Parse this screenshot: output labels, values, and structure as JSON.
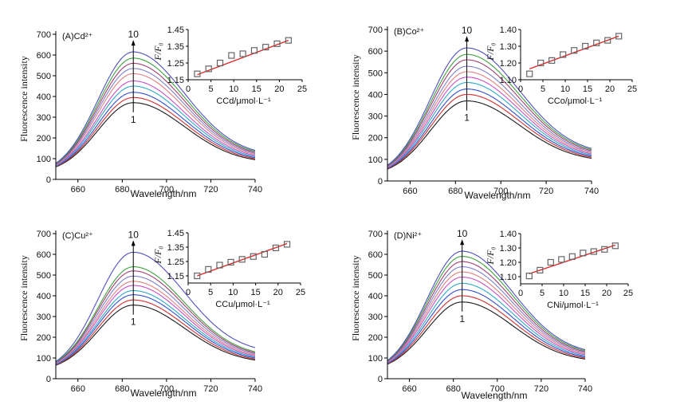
{
  "chart_data": [
    {
      "id": "A",
      "type": "line",
      "panel_label": "(A)Cd²⁺",
      "xlabel": "Wavelength/nm",
      "ylabel": "Fluorescence intensity",
      "xlim": [
        650,
        740
      ],
      "ylim": [
        0,
        700
      ],
      "xticks": [
        660,
        680,
        700,
        720,
        740
      ],
      "yticks": [
        0,
        100,
        200,
        300,
        400,
        500,
        600,
        700
      ],
      "peak_x": 685,
      "curve_labels": [
        "1",
        "10"
      ],
      "series_peaks": [
        370,
        395,
        420,
        450,
        475,
        510,
        535,
        560,
        585,
        615
      ],
      "series_start": [
        60,
        62,
        64,
        66,
        68,
        70,
        72,
        74,
        76,
        78
      ],
      "series_end": [
        95,
        100,
        105,
        110,
        115,
        120,
        125,
        130,
        135,
        140
      ],
      "inset": {
        "ylabel": "F/F₀",
        "xlabel": "CCd/μmol·L⁻¹",
        "xlim": [
          0,
          25
        ],
        "ylim": [
          1.15,
          1.45
        ],
        "xticks": [
          0,
          5,
          10,
          15,
          20,
          25
        ],
        "yticks": [
          1.15,
          1.25,
          1.35,
          1.45
        ],
        "x": [
          2,
          4.5,
          7,
          9.5,
          12,
          14.5,
          17,
          19.5,
          22
        ],
        "y": [
          1.185,
          1.215,
          1.25,
          1.295,
          1.305,
          1.325,
          1.345,
          1.365,
          1.385
        ],
        "fit": [
          [
            2,
            1.18
          ],
          [
            22,
            1.385
          ]
        ]
      }
    },
    {
      "id": "B",
      "type": "line",
      "panel_label": "(B)Co²⁺",
      "xlabel": "Wavelength/nm",
      "ylabel": "Fluorescence intensity",
      "xlim": [
        650,
        740
      ],
      "ylim": [
        0,
        700
      ],
      "xticks": [
        660,
        680,
        700,
        720,
        740
      ],
      "yticks": [
        0,
        100,
        200,
        300,
        400,
        500,
        600,
        700
      ],
      "peak_x": 685,
      "curve_labels": [
        "1",
        "10"
      ],
      "series_peaks": [
        370,
        400,
        425,
        455,
        480,
        505,
        530,
        560,
        585,
        615
      ],
      "series_start": [
        55,
        57,
        59,
        61,
        63,
        65,
        67,
        69,
        71,
        73
      ],
      "series_end": [
        105,
        110,
        115,
        120,
        125,
        130,
        135,
        140,
        145,
        150
      ],
      "inset": {
        "ylabel": "F/F₀",
        "xlabel": "CCo/μmol·L⁻¹",
        "xlim": [
          0,
          25
        ],
        "ylim": [
          1.1,
          1.4
        ],
        "xticks": [
          0,
          5,
          10,
          15,
          20,
          25
        ],
        "yticks": [
          1.1,
          1.2,
          1.3,
          1.4
        ],
        "x": [
          2,
          4.5,
          7,
          9.5,
          12,
          14.5,
          17,
          19.5,
          22
        ],
        "y": [
          1.135,
          1.2,
          1.215,
          1.25,
          1.275,
          1.3,
          1.32,
          1.335,
          1.36
        ],
        "fit": [
          [
            2,
            1.165
          ],
          [
            22,
            1.36
          ]
        ]
      }
    },
    {
      "id": "C",
      "type": "line",
      "panel_label": "(C)Cu²⁺",
      "xlabel": "Wavelength/nm",
      "ylabel": "Fluorescence intensity",
      "xlim": [
        650,
        740
      ],
      "ylim": [
        0,
        700
      ],
      "xticks": [
        660,
        680,
        700,
        720,
        740
      ],
      "yticks": [
        0,
        100,
        200,
        300,
        400,
        500,
        600,
        700
      ],
      "peak_x": 685,
      "curve_labels": [
        "1",
        "10"
      ],
      "series_peaks": [
        355,
        380,
        405,
        425,
        450,
        470,
        495,
        520,
        540,
        610
      ],
      "series_start": [
        65,
        67,
        69,
        71,
        73,
        75,
        77,
        79,
        81,
        83
      ],
      "series_end": [
        90,
        95,
        100,
        105,
        110,
        115,
        120,
        125,
        130,
        150
      ],
      "inset": {
        "ylabel": "F/F₀",
        "xlabel": "CCu/μmol·L⁻¹",
        "xlim": [
          0,
          25
        ],
        "ylim": [
          1.1,
          1.45
        ],
        "xticks": [
          0,
          5,
          10,
          15,
          20,
          25
        ],
        "yticks": [
          1.15,
          1.25,
          1.35,
          1.45
        ],
        "x": [
          2,
          4.5,
          7,
          9.5,
          12,
          14.5,
          17,
          19.5,
          22
        ],
        "y": [
          1.15,
          1.195,
          1.225,
          1.245,
          1.265,
          1.285,
          1.3,
          1.345,
          1.37
        ],
        "fit": [
          [
            2,
            1.15
          ],
          [
            22,
            1.375
          ]
        ]
      }
    },
    {
      "id": "D",
      "type": "line",
      "panel_label": "(D)Ni²⁺",
      "xlabel": "Wavelength/nm",
      "ylabel": "Fluorescence intensity",
      "xlim": [
        650,
        740
      ],
      "ylim": [
        0,
        700
      ],
      "xticks": [
        660,
        680,
        700,
        720,
        740
      ],
      "yticks": [
        0,
        100,
        200,
        300,
        400,
        500,
        600,
        700
      ],
      "peak_x": 684,
      "curve_labels": [
        "1",
        "10"
      ],
      "series_peaks": [
        370,
        400,
        430,
        460,
        490,
        515,
        540,
        565,
        590,
        615
      ],
      "series_start": [
        70,
        72,
        74,
        76,
        78,
        80,
        82,
        84,
        86,
        88
      ],
      "series_end": [
        95,
        100,
        105,
        110,
        115,
        120,
        125,
        130,
        135,
        140
      ],
      "inset": {
        "ylabel": "F/F₀",
        "xlabel": "CNi/μmol·L⁻¹",
        "xlim": [
          0,
          25
        ],
        "ylim": [
          1.05,
          1.4
        ],
        "xticks": [
          0,
          5,
          10,
          15,
          20,
          25
        ],
        "yticks": [
          1.1,
          1.2,
          1.3,
          1.4
        ],
        "x": [
          2,
          4.5,
          7,
          9.5,
          12,
          14.5,
          17,
          19.5,
          22
        ],
        "y": [
          1.105,
          1.145,
          1.2,
          1.22,
          1.24,
          1.265,
          1.275,
          1.29,
          1.315
        ],
        "fit": [
          [
            2,
            1.12
          ],
          [
            22,
            1.32
          ]
        ]
      }
    }
  ],
  "colors": {
    "series": [
      "#1a1a1a",
      "#d03030",
      "#3050d0",
      "#30a8c8",
      "#c850c8",
      "#e08080",
      "#8080d0",
      "#a04070",
      "#40a040",
      "#5050c0"
    ],
    "fit_line": "#e02020",
    "marker": "#666666"
  }
}
